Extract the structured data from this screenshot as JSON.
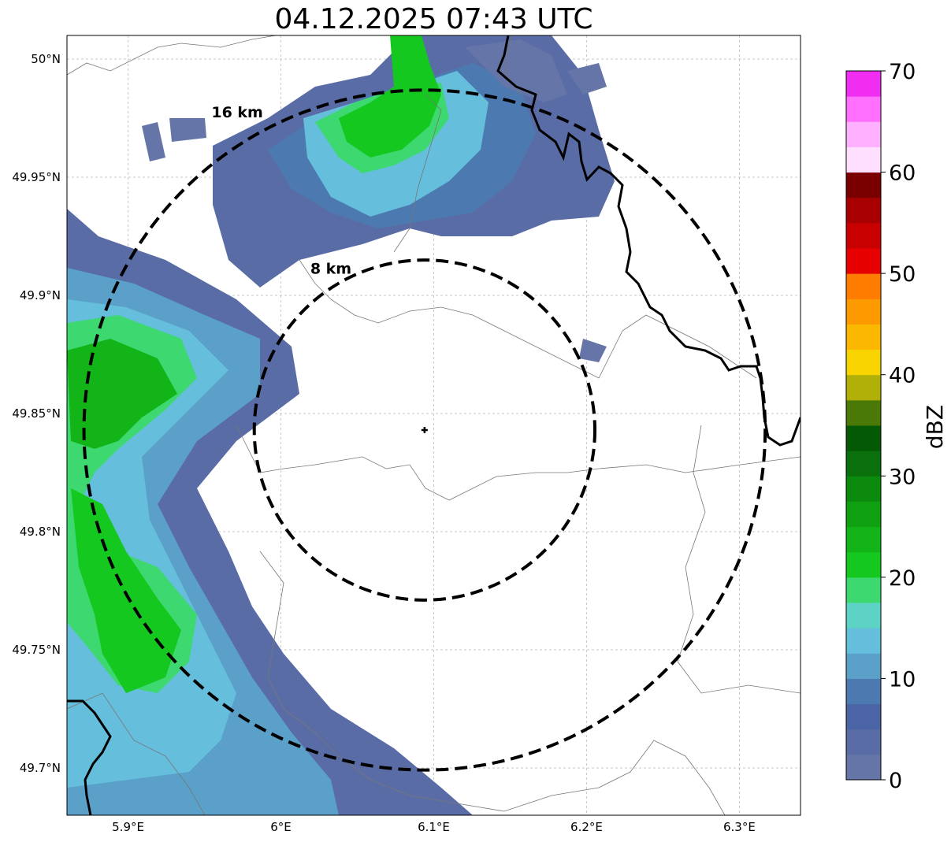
{
  "title": "04.12.2025 07:43 UTC",
  "map": {
    "lon_range": [
      5.86,
      6.34
    ],
    "lat_range": [
      49.68,
      50.01
    ],
    "lon_ticks": [
      {
        "value": 5.9,
        "label": "5.9°E"
      },
      {
        "value": 6.0,
        "label": "6°E"
      },
      {
        "value": 6.1,
        "label": "6.1°E"
      },
      {
        "value": 6.2,
        "label": "6.2°E"
      },
      {
        "value": 6.3,
        "label": "6.3°E"
      }
    ],
    "lat_ticks": [
      {
        "value": 49.7,
        "label": "49.7°N"
      },
      {
        "value": 49.75,
        "label": "49.75°N"
      },
      {
        "value": 49.8,
        "label": "49.8°N"
      },
      {
        "value": 49.85,
        "label": "49.85°N"
      },
      {
        "value": 49.9,
        "label": "49.9°N"
      },
      {
        "value": 49.95,
        "label": "49.95°N"
      },
      {
        "value": 50.0,
        "label": "50°N"
      }
    ],
    "radar_center": {
      "lon": 6.094,
      "lat": 49.843
    },
    "rings": [
      {
        "radius_km": 8,
        "label": "8 km"
      },
      {
        "radius_km": 16,
        "label": "16 km"
      }
    ]
  },
  "colorbar": {
    "label": "dBZ",
    "min": 0,
    "max": 70,
    "step": 2.5,
    "ticks": [
      0,
      10,
      20,
      30,
      40,
      50,
      60,
      70
    ],
    "colors": [
      "#6575a8",
      "#5a6ca6",
      "#4a64a6",
      "#4c79b0",
      "#5aa0c8",
      "#64bedc",
      "#5dd3c5",
      "#3dd86f",
      "#15c820",
      "#12b418",
      "#0fa012",
      "#0c8a0e",
      "#0a700b",
      "#045a04",
      "#4b7908",
      "#b0b008",
      "#fad400",
      "#fcb700",
      "#fd9a00",
      "#ff7c00",
      "#e60000",
      "#c80000",
      "#a80000",
      "#7a0000",
      "#ffdfff",
      "#ffb0ff",
      "#ff70ff",
      "#f12df1"
    ]
  },
  "legend_icons": {
    "radar_site": "plus-icon"
  }
}
